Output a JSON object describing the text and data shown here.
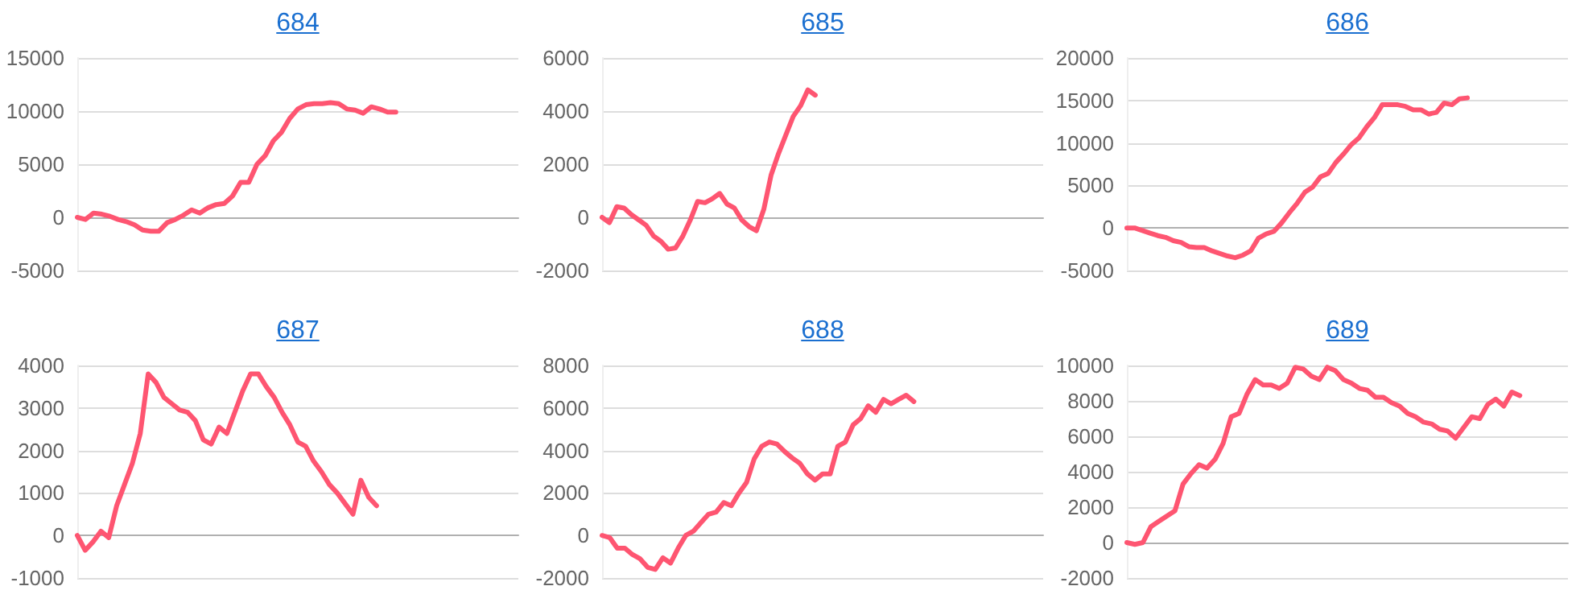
{
  "chart_data": [
    {
      "type": "line",
      "title": "684",
      "categories": [
        null,
        null,
        null,
        null,
        null,
        null,
        null,
        null,
        null,
        null,
        null,
        null,
        null,
        null,
        null,
        null,
        null,
        null,
        null,
        null,
        null,
        null,
        null,
        null,
        null,
        null,
        null,
        null,
        null,
        null,
        null,
        null,
        null,
        null,
        null,
        null,
        null,
        null,
        null,
        null,
        null,
        null,
        null,
        null,
        null,
        null,
        null,
        null,
        null,
        null,
        null,
        null,
        null,
        null,
        null
      ],
      "color": "#fe5571",
      "ylim": [
        -5000,
        15000
      ],
      "yticks": [
        -5000,
        0,
        5000,
        10000,
        15000
      ],
      "grid": "y",
      "values": [
        0,
        -200,
        400,
        300,
        100,
        -200,
        -400,
        -700,
        -1200,
        -1300,
        -1300,
        -500,
        -200,
        200,
        700,
        400,
        900,
        1200,
        1300,
        2000,
        3300,
        3300,
        5000,
        5800,
        7200,
        8000,
        9300,
        10200,
        10600,
        10700,
        10700,
        10800,
        10700,
        10200,
        10100,
        9800,
        10400,
        10200,
        9900,
        9900,
        null,
        null,
        null,
        null,
        null,
        null,
        null,
        null,
        null,
        null,
        null,
        null,
        null,
        null,
        null
      ]
    },
    {
      "type": "line",
      "title": "685",
      "categories": [
        null,
        null,
        null,
        null,
        null,
        null,
        null,
        null,
        null,
        null,
        null,
        null,
        null,
        null,
        null,
        null,
        null,
        null,
        null,
        null,
        null,
        null,
        null,
        null,
        null,
        null,
        null,
        null,
        null,
        null,
        null,
        null,
        null,
        null,
        null,
        null,
        null,
        null,
        null,
        null,
        null,
        null,
        null,
        null,
        null,
        null,
        null,
        null,
        null,
        null,
        null,
        null,
        null,
        null,
        null,
        null,
        null,
        null,
        null,
        null,
        null
      ],
      "color": "#fe5571",
      "ylim": [
        -2000,
        6000
      ],
      "yticks": [
        -2000,
        0,
        2000,
        4000,
        6000
      ],
      "grid": "y",
      "values": [
        0,
        -200,
        400,
        350,
        100,
        -100,
        -300,
        -700,
        -900,
        -1200,
        -1150,
        -700,
        -100,
        600,
        550,
        700,
        900,
        500,
        350,
        -100,
        -350,
        -500,
        300,
        1600,
        2400,
        3100,
        3800,
        4200,
        4800,
        4600,
        null,
        null,
        null,
        null,
        null,
        null,
        null,
        null,
        null,
        null,
        null,
        null,
        null,
        null,
        null,
        null,
        null,
        null,
        null,
        null,
        null,
        null,
        null,
        null,
        null,
        null,
        null,
        null,
        null,
        null,
        null
      ]
    },
    {
      "type": "line",
      "title": "686",
      "categories": [
        null,
        null,
        null,
        null,
        null,
        null,
        null,
        null,
        null,
        null,
        null,
        null,
        null,
        null,
        null,
        null,
        null,
        null,
        null,
        null,
        null,
        null,
        null,
        null,
        null,
        null,
        null,
        null,
        null,
        null,
        null,
        null,
        null,
        null,
        null,
        null,
        null,
        null,
        null,
        null,
        null,
        null,
        null,
        null,
        null,
        null,
        null,
        null,
        null,
        null,
        null,
        null,
        null,
        null,
        null,
        null,
        null,
        null
      ],
      "color": "#fe5571",
      "ylim": [
        -5000,
        20000
      ],
      "yticks": [
        -5000,
        0,
        5000,
        10000,
        15000,
        20000
      ],
      "grid": "y",
      "values": [
        0,
        0,
        -300,
        -600,
        -900,
        -1100,
        -1500,
        -1700,
        -2200,
        -2300,
        -2300,
        -2700,
        -3000,
        -3300,
        -3500,
        -3200,
        -2700,
        -1200,
        -700,
        -400,
        600,
        1800,
        2900,
        4200,
        4800,
        6000,
        6400,
        7700,
        8700,
        9800,
        10600,
        11900,
        13000,
        14500,
        14500,
        14500,
        14300,
        13900,
        13900,
        13400,
        13600,
        14700,
        14500,
        15200,
        15300,
        null,
        null,
        null,
        null,
        null,
        null,
        null,
        null,
        null,
        null,
        null,
        null,
        null
      ]
    },
    {
      "type": "line",
      "title": "687",
      "categories": [
        null,
        null,
        null,
        null,
        null,
        null,
        null,
        null,
        null,
        null,
        null,
        null,
        null,
        null,
        null,
        null,
        null,
        null,
        null,
        null,
        null,
        null,
        null,
        null,
        null,
        null,
        null,
        null,
        null,
        null,
        null,
        null,
        null,
        null,
        null,
        null,
        null,
        null,
        null,
        null,
        null,
        null,
        null,
        null,
        null,
        null,
        null,
        null,
        null,
        null,
        null,
        null,
        null,
        null,
        null,
        null,
        null
      ],
      "color": "#fe5571",
      "ylim": [
        -1000,
        4000
      ],
      "yticks": [
        -1000,
        0,
        1000,
        2000,
        3000,
        4000
      ],
      "grid": "y",
      "values": [
        0,
        -350,
        -150,
        100,
        -50,
        700,
        1200,
        1700,
        2400,
        3800,
        3600,
        3250,
        3100,
        2950,
        2900,
        2700,
        2250,
        2150,
        2550,
        2400,
        2900,
        3400,
        3800,
        3800,
        3500,
        3250,
        2900,
        2600,
        2200,
        2100,
        1750,
        1500,
        1200,
        1000,
        750,
        500,
        1300,
        900,
        700,
        null,
        null,
        null,
        null,
        null,
        null,
        null,
        null,
        null,
        null,
        null,
        null,
        null,
        null,
        null,
        null,
        null,
        null
      ]
    },
    {
      "type": "line",
      "title": "688",
      "categories": [
        null,
        null,
        null,
        null,
        null,
        null,
        null,
        null,
        null,
        null,
        null,
        null,
        null,
        null,
        null,
        null,
        null,
        null,
        null,
        null,
        null,
        null,
        null,
        null,
        null,
        null,
        null,
        null,
        null,
        null,
        null,
        null,
        null,
        null,
        null,
        null,
        null,
        null,
        null,
        null,
        null,
        null,
        null,
        null,
        null,
        null,
        null,
        null,
        null,
        null,
        null,
        null,
        null,
        null,
        null,
        null,
        null,
        null,
        null
      ],
      "color": "#fe5571",
      "ylim": [
        -2000,
        8000
      ],
      "yticks": [
        -2000,
        0,
        2000,
        4000,
        6000,
        8000
      ],
      "grid": "y",
      "values": [
        0,
        -100,
        -600,
        -600,
        -900,
        -1100,
        -1500,
        -1600,
        -1050,
        -1300,
        -600,
        0,
        200,
        600,
        1000,
        1100,
        1550,
        1400,
        2000,
        2500,
        3600,
        4200,
        4400,
        4300,
        3950,
        3650,
        3400,
        2900,
        2600,
        2900,
        2900,
        4200,
        4400,
        5200,
        5500,
        6100,
        5800,
        6400,
        6200,
        6400,
        6600,
        6300,
        null,
        null,
        null,
        null,
        null,
        null,
        null,
        null,
        null,
        null,
        null,
        null,
        null,
        null,
        null,
        null,
        null
      ]
    },
    {
      "type": "line",
      "title": "689",
      "categories": [
        null,
        null,
        null,
        null,
        null,
        null,
        null,
        null,
        null,
        null,
        null,
        null,
        null,
        null,
        null,
        null,
        null,
        null,
        null,
        null,
        null,
        null,
        null,
        null,
        null,
        null,
        null,
        null,
        null,
        null,
        null,
        null,
        null,
        null,
        null,
        null,
        null,
        null,
        null,
        null,
        null,
        null,
        null,
        null,
        null,
        null,
        null,
        null,
        null,
        null,
        null,
        null,
        null,
        null,
        null,
        null
      ],
      "color": "#fe5571",
      "ylim": [
        -2000,
        10000
      ],
      "yticks": [
        -2000,
        0,
        2000,
        4000,
        6000,
        8000,
        10000
      ],
      "grid": "y",
      "values": [
        0,
        -100,
        0,
        900,
        1200,
        1500,
        1800,
        3300,
        3900,
        4400,
        4200,
        4700,
        5600,
        7100,
        7300,
        8400,
        9200,
        8900,
        8900,
        8700,
        9000,
        9900,
        9800,
        9400,
        9200,
        9900,
        9700,
        9200,
        9000,
        8700,
        8600,
        8200,
        8200,
        7900,
        7700,
        7300,
        7100,
        6800,
        6700,
        6400,
        6300,
        5900,
        6500,
        7100,
        7000,
        7800,
        8100,
        7700,
        8500,
        8300,
        null,
        null,
        null,
        null,
        null,
        null
      ]
    }
  ]
}
